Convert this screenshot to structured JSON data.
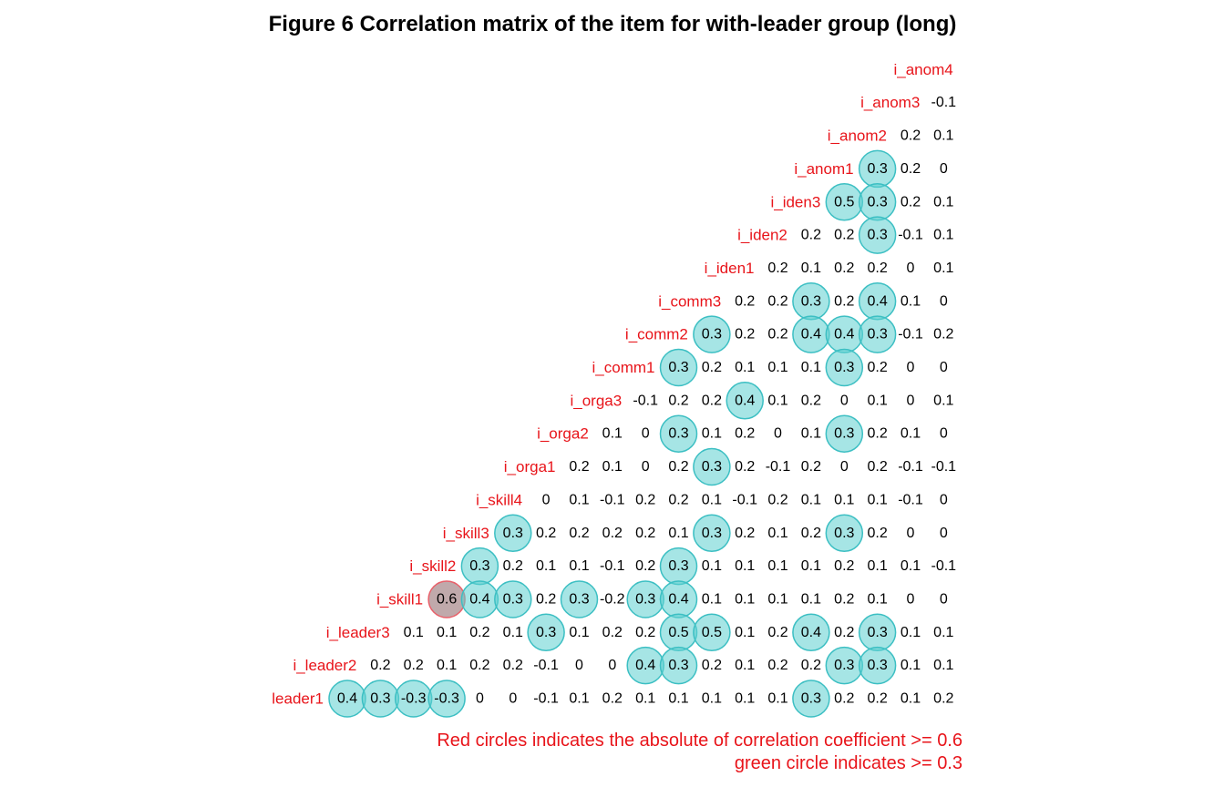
{
  "chart_data": {
    "type": "heatmap",
    "title": "Figure  6 Correlation matrix of the item for with-leader group (long)",
    "row_labels": [
      "i_anom4",
      "i_anom3",
      "i_anom2",
      "i_anom1",
      "i_iden3",
      "i_iden2",
      "i_iden1",
      "i_comm3",
      "i_comm2",
      "i_comm1",
      "i_orga3",
      "i_orga2",
      "i_orga1",
      "i_skill4",
      "i_skill3",
      "i_skill2",
      "i_skill1",
      "i_leader3",
      "i_leader2",
      "leader1"
    ],
    "rows": [
      [],
      [
        "-0.1"
      ],
      [
        "0.2",
        "0.1"
      ],
      [
        "0.3",
        "0.2",
        "0"
      ],
      [
        "0.5",
        "0.3",
        "0.2",
        "0.1"
      ],
      [
        "0.2",
        "0.2",
        "0.3",
        "-0.1",
        "0.1"
      ],
      [
        "0.2",
        "0.1",
        "0.2",
        "0.2",
        "0",
        "0.1"
      ],
      [
        "0.2",
        "0.2",
        "0.3",
        "0.2",
        "0.4",
        "0.1",
        "0"
      ],
      [
        "0.3",
        "0.2",
        "0.2",
        "0.4",
        "0.4",
        "0.3",
        "-0.1",
        "0.2"
      ],
      [
        "0.3",
        "0.2",
        "0.1",
        "0.1",
        "0.1",
        "0.3",
        "0.2",
        "0",
        "0"
      ],
      [
        "-0.1",
        "0.2",
        "0.2",
        "0.4",
        "0.1",
        "0.2",
        "0",
        "0.1",
        "0",
        "0.1"
      ],
      [
        "0.1",
        "0",
        "0.3",
        "0.1",
        "0.2",
        "0",
        "0.1",
        "0.3",
        "0.2",
        "0.1",
        "0"
      ],
      [
        "0.2",
        "0.1",
        "0",
        "0.2",
        "0.3",
        "0.2",
        "-0.1",
        "0.2",
        "0",
        "0.2",
        "-0.1",
        "-0.1"
      ],
      [
        "0",
        "0.1",
        "-0.1",
        "0.2",
        "0.2",
        "0.1",
        "-0.1",
        "0.2",
        "0.1",
        "0.1",
        "0.1",
        "-0.1",
        "0"
      ],
      [
        "0.3",
        "0.2",
        "0.2",
        "0.2",
        "0.2",
        "0.1",
        "0.3",
        "0.2",
        "0.1",
        "0.2",
        "0.3",
        "0.2",
        "0",
        "0"
      ],
      [
        "0.3",
        "0.2",
        "0.1",
        "0.1",
        "-0.1",
        "0.2",
        "0.3",
        "0.1",
        "0.1",
        "0.1",
        "0.1",
        "0.2",
        "0.1",
        "0.1",
        "-0.1"
      ],
      [
        "0.6",
        "0.4",
        "0.3",
        "0.2",
        "0.3",
        "-0.2",
        "0.3",
        "0.4",
        "0.1",
        "0.1",
        "0.1",
        "0.1",
        "0.2",
        "0.1",
        "0",
        "0"
      ],
      [
        "0.1",
        "0.1",
        "0.2",
        "0.1",
        "0.3",
        "0.1",
        "0.2",
        "0.2",
        "0.5",
        "0.5",
        "0.1",
        "0.2",
        "0.4",
        "0.2",
        "0.3",
        "0.1",
        "0.1"
      ],
      [
        "0.2",
        "0.2",
        "0.1",
        "0.2",
        "0.2",
        "-0.1",
        "0",
        "0",
        "0.4",
        "0.3",
        "0.2",
        "0.1",
        "0.2",
        "0.2",
        "0.3",
        "0.3",
        "0.1",
        "0.1"
      ],
      [
        "0.4",
        "0.3",
        "-0.3",
        "-0.3",
        "0",
        "0",
        "-0.1",
        "0.1",
        "0.2",
        "0.1",
        "0.1",
        "0.1",
        "0.1",
        "0.1",
        "0.3",
        "0.2",
        "0.2",
        "0.1",
        "0.2"
      ]
    ],
    "legend_note": [
      "Red circles indicates the absolute of correlation coefficient >= 0.6",
      "green circle indicates >= 0.3"
    ],
    "thresholds": {
      "red": 0.6,
      "green": 0.3
    },
    "colors": {
      "label": "#e8141a",
      "note": "#e8141a",
      "green_fill": "#5ccfd0",
      "green_stroke": "#3cbfc3",
      "red_fill": "#b59a9c",
      "red_stroke": "#e8606a"
    }
  }
}
